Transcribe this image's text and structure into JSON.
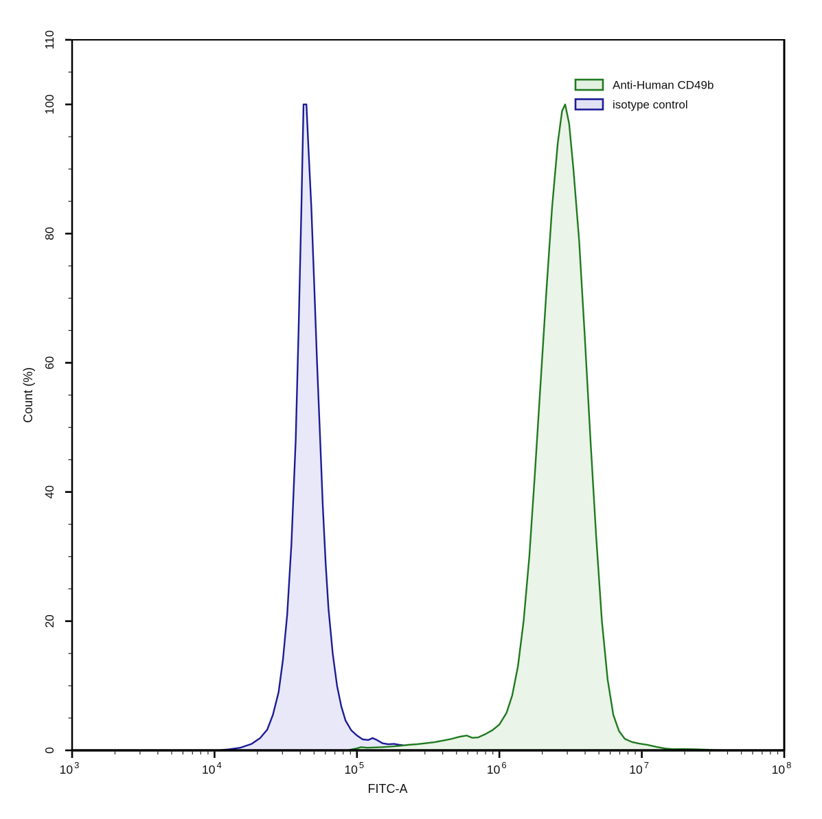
{
  "figure": {
    "background": "#ffffff",
    "axis_color": "#000000",
    "text_color": "#111111"
  },
  "chart_data": {
    "type": "area",
    "subtype": "flow-cytometry-histogram",
    "title": "",
    "xlabel": "FITC-A",
    "ylabel": "Count (%)",
    "x_scale": "log10",
    "xlim_log10": [
      3,
      8
    ],
    "ylim": [
      0,
      110
    ],
    "grid": false,
    "x_major_ticks": [
      {
        "log10": 3,
        "base": "10",
        "exp": "3"
      },
      {
        "log10": 4,
        "base": "10",
        "exp": "4"
      },
      {
        "log10": 5,
        "base": "10",
        "exp": "5"
      },
      {
        "log10": 6,
        "base": "10",
        "exp": "6"
      },
      {
        "log10": 7,
        "base": "10",
        "exp": "7"
      },
      {
        "log10": 8,
        "base": "10",
        "exp": "8"
      }
    ],
    "y_major_ticks": [
      {
        "value": 0,
        "label": "0"
      },
      {
        "value": 20,
        "label": "20"
      },
      {
        "value": 40,
        "label": "40"
      },
      {
        "value": 60,
        "label": "60"
      },
      {
        "value": 80,
        "label": "80"
      },
      {
        "value": 100,
        "label": "100"
      },
      {
        "value": 110,
        "label": "110"
      }
    ],
    "y_minor_tick_step": 5,
    "legend": {
      "position": "top-right",
      "entries": [
        {
          "label": "Anti-Human CD49b",
          "fill": "#e3f1e1",
          "stroke": "#1f7a1f"
        },
        {
          "label": "isotype control",
          "fill": "#e2e2f5",
          "stroke": "#1c1c96"
        }
      ]
    },
    "series": [
      {
        "name": "Anti-Human CD49b",
        "line_color": "#1f7a1f",
        "fill_color": "#eaf4e8",
        "peak_log10x": 6.46,
        "peak_percent": 100,
        "points": [
          [
            4.93,
            0
          ],
          [
            4.99,
            0.25
          ],
          [
            5.03,
            0.5
          ],
          [
            5.07,
            0.4
          ],
          [
            5.12,
            0.45
          ],
          [
            5.18,
            0.5
          ],
          [
            5.24,
            0.6
          ],
          [
            5.3,
            0.7
          ],
          [
            5.36,
            0.85
          ],
          [
            5.42,
            0.95
          ],
          [
            5.48,
            1.1
          ],
          [
            5.54,
            1.25
          ],
          [
            5.6,
            1.5
          ],
          [
            5.66,
            1.75
          ],
          [
            5.72,
            2.1
          ],
          [
            5.77,
            2.3
          ],
          [
            5.81,
            1.95
          ],
          [
            5.85,
            2.0
          ],
          [
            5.9,
            2.5
          ],
          [
            5.95,
            3.1
          ],
          [
            6.0,
            4.0
          ],
          [
            6.05,
            5.8
          ],
          [
            6.09,
            8.5
          ],
          [
            6.13,
            13
          ],
          [
            6.17,
            20
          ],
          [
            6.21,
            30
          ],
          [
            6.25,
            43
          ],
          [
            6.29,
            57
          ],
          [
            6.33,
            71
          ],
          [
            6.37,
            84
          ],
          [
            6.41,
            94
          ],
          [
            6.44,
            99
          ],
          [
            6.462,
            100
          ],
          [
            6.49,
            97
          ],
          [
            6.52,
            90
          ],
          [
            6.56,
            79
          ],
          [
            6.6,
            64
          ],
          [
            6.64,
            48
          ],
          [
            6.68,
            33
          ],
          [
            6.72,
            20
          ],
          [
            6.76,
            11
          ],
          [
            6.8,
            5.5
          ],
          [
            6.84,
            3.0
          ],
          [
            6.88,
            1.8
          ],
          [
            6.93,
            1.3
          ],
          [
            6.98,
            1.05
          ],
          [
            7.04,
            0.85
          ],
          [
            7.1,
            0.55
          ],
          [
            7.16,
            0.3
          ],
          [
            7.22,
            0.18
          ],
          [
            7.3,
            0.2
          ],
          [
            7.38,
            0.16
          ],
          [
            7.46,
            0.1
          ],
          [
            7.54,
            0.04
          ],
          [
            7.6,
            0
          ]
        ]
      },
      {
        "name": "isotype control",
        "line_color": "#1c1c96",
        "fill_color": "#e8e8f8",
        "peak_log10x": 4.63,
        "peak_percent": 100,
        "points": [
          [
            4.02,
            0
          ],
          [
            4.1,
            0.15
          ],
          [
            4.18,
            0.4
          ],
          [
            4.26,
            1.0
          ],
          [
            4.32,
            1.9
          ],
          [
            4.37,
            3.2
          ],
          [
            4.41,
            5.5
          ],
          [
            4.45,
            9
          ],
          [
            4.48,
            14
          ],
          [
            4.51,
            21
          ],
          [
            4.54,
            32
          ],
          [
            4.57,
            48
          ],
          [
            4.59,
            65
          ],
          [
            4.61,
            84
          ],
          [
            4.625,
            100
          ],
          [
            4.645,
            100
          ],
          [
            4.66,
            93
          ],
          [
            4.68,
            84
          ],
          [
            4.7,
            72
          ],
          [
            4.72,
            60
          ],
          [
            4.74,
            49
          ],
          [
            4.76,
            38
          ],
          [
            4.78,
            29
          ],
          [
            4.8,
            22
          ],
          [
            4.83,
            15
          ],
          [
            4.86,
            10
          ],
          [
            4.89,
            6.8
          ],
          [
            4.92,
            4.6
          ],
          [
            4.96,
            3.1
          ],
          [
            5.0,
            2.3
          ],
          [
            5.04,
            1.7
          ],
          [
            5.08,
            1.6
          ],
          [
            5.11,
            1.9
          ],
          [
            5.14,
            1.6
          ],
          [
            5.18,
            1.1
          ],
          [
            5.22,
            0.95
          ],
          [
            5.26,
            1.0
          ],
          [
            5.3,
            0.85
          ],
          [
            5.34,
            0.75
          ],
          [
            5.4,
            0.6
          ],
          [
            5.46,
            0.55
          ],
          [
            5.52,
            0.5
          ],
          [
            5.58,
            0.45
          ],
          [
            5.63,
            0.35
          ],
          [
            5.68,
            0.4
          ],
          [
            5.74,
            0.3
          ],
          [
            5.8,
            0.18
          ],
          [
            5.85,
            0.08
          ],
          [
            5.9,
            0
          ]
        ]
      }
    ]
  }
}
